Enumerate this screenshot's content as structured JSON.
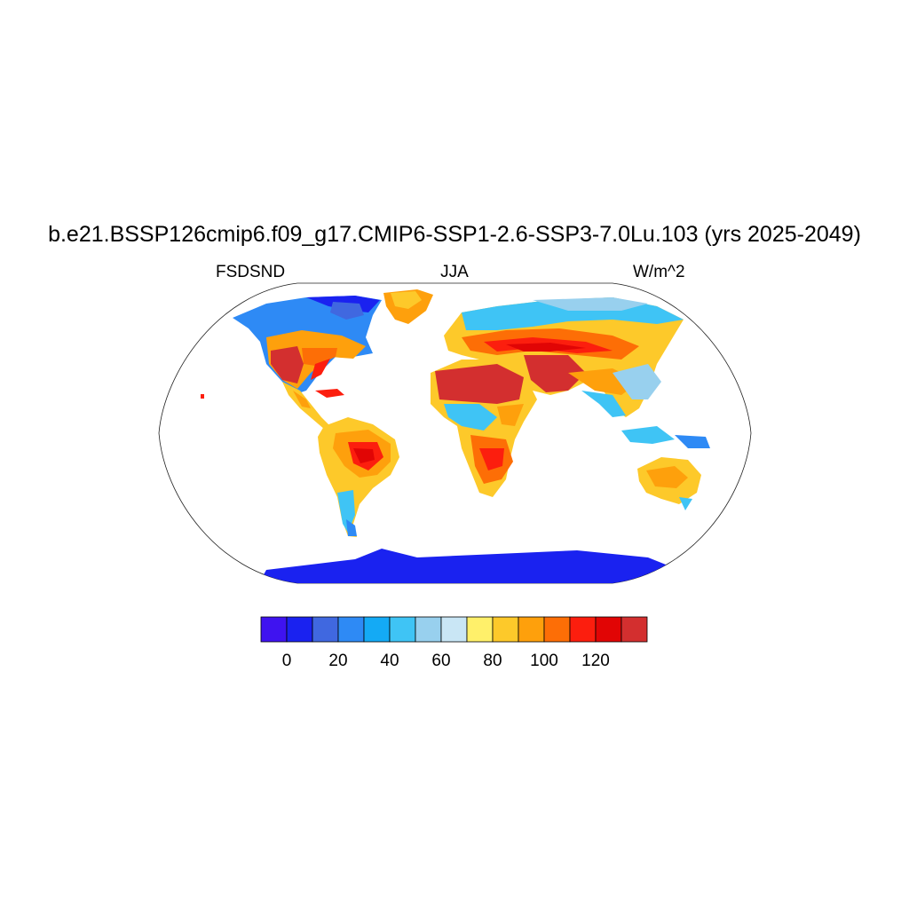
{
  "title": "b.e21.BSSP126cmip6.f09_g17.CMIP6-SSP1-2.6-SSP3-7.0Lu.103 (yrs 2025-2049)",
  "left_label": "FSDSND",
  "center_label": "JJA",
  "right_label": "W/m^2",
  "colorbar": {
    "colors": [
      "#3f13f0",
      "#1a22f0",
      "#4068e0",
      "#2e8af5",
      "#14aaf5",
      "#3fc4f5",
      "#98d0ee",
      "#c9e6f5",
      "#fff06a",
      "#fdc92a",
      "#fea00c",
      "#fd6e06",
      "#fc1e0e",
      "#e10505",
      "#d32f2f"
    ],
    "tick_labels": [
      "0",
      "20",
      "40",
      "60",
      "80",
      "100",
      "120"
    ]
  }
}
